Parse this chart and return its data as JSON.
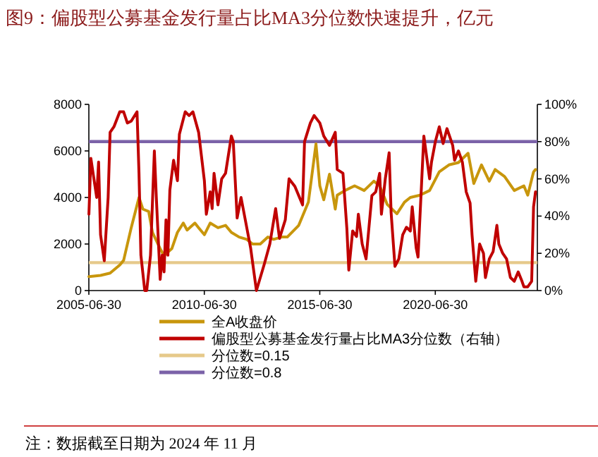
{
  "chart_data": {
    "type": "line",
    "title": "图9：偏股型公募基金发行量占比MA3分位数快速提升，亿元",
    "annotations": [
      "注：数据截至日期为 2024 年 11 月"
    ],
    "xlim": [
      "2005-06-30",
      "2024-11-30"
    ],
    "xticks": [
      "2005-06-30",
      "2010-06-30",
      "2015-06-30",
      "2020-06-30"
    ],
    "ylim": [
      0,
      8000
    ],
    "yticks": [
      0,
      2000,
      4000,
      6000,
      8000
    ],
    "y2lim": [
      0,
      1
    ],
    "y2ticks": [
      {
        "value": 0,
        "label": "0%"
      },
      {
        "value": 0.2,
        "label": "20%"
      },
      {
        "value": 0.4,
        "label": "40%"
      },
      {
        "value": 0.6,
        "label": "60%"
      },
      {
        "value": 0.8,
        "label": "80%"
      },
      {
        "value": 1,
        "label": "100%"
      }
    ],
    "grid": false,
    "legend": "bottom",
    "series": [
      {
        "name": "全A收盘价",
        "color": "#c8960c",
        "x": [
          "2005-07",
          "2006-01",
          "2006-06",
          "2006-11",
          "2007-01",
          "2007-05",
          "2007-09",
          "2007-11",
          "2008-02",
          "2008-04",
          "2008-08",
          "2008-10",
          "2009-02",
          "2009-05",
          "2009-08",
          "2009-10",
          "2010-02",
          "2010-04",
          "2010-07",
          "2010-10",
          "2011-02",
          "2011-06",
          "2011-09",
          "2012-01",
          "2012-05",
          "2012-08",
          "2012-12",
          "2013-04",
          "2013-07",
          "2013-11",
          "2014-02",
          "2014-08",
          "2015-01",
          "2015-05",
          "2015-07",
          "2015-09",
          "2015-12",
          "2016-03",
          "2016-04",
          "2016-08",
          "2017-01",
          "2017-06",
          "2017-11",
          "2018-02",
          "2018-06",
          "2018-11",
          "2019-03",
          "2019-06",
          "2019-11",
          "2020-04",
          "2020-09",
          "2021-02",
          "2021-07",
          "2021-12",
          "2022-03",
          "2022-07",
          "2022-11",
          "2023-02",
          "2023-07",
          "2023-12",
          "2024-05",
          "2024-07",
          "2024-10",
          "2024-11"
        ],
        "values": [
          600,
          650,
          750,
          1100,
          1300,
          2700,
          4000,
          3500,
          3400,
          2500,
          1800,
          1500,
          1800,
          2500,
          2900,
          2600,
          2900,
          2700,
          2400,
          2900,
          2700,
          2800,
          2500,
          2300,
          2200,
          2000,
          2000,
          2300,
          2200,
          2300,
          2300,
          2800,
          3800,
          6300,
          4500,
          3900,
          5000,
          3500,
          4100,
          4300,
          4500,
          4300,
          4700,
          4500,
          3700,
          3300,
          3800,
          4000,
          4100,
          4300,
          5100,
          5400,
          5500,
          5900,
          4600,
          5400,
          4700,
          5200,
          4900,
          4300,
          4500,
          4100,
          5100,
          5200
        ]
      },
      {
        "name": "偏股型公募基金发行量占比MA3分位数（右轴）",
        "color": "#c00000",
        "axis": "y2",
        "x": [
          "2005-07",
          "2005-08",
          "2005-11",
          "2005-12",
          "2006-01",
          "2006-03",
          "2006-05",
          "2006-06",
          "2006-08",
          "2006-11",
          "2007-01",
          "2007-03",
          "2007-05",
          "2007-08",
          "2007-09",
          "2007-10",
          "2007-12",
          "2008-01",
          "2008-03",
          "2008-05",
          "2008-06",
          "2008-08",
          "2008-09",
          "2008-10",
          "2008-11",
          "2008-12",
          "2009-01",
          "2009-03",
          "2009-05",
          "2009-06",
          "2009-09",
          "2009-11",
          "2010-01",
          "2010-04",
          "2010-07",
          "2010-08",
          "2010-10",
          "2010-11",
          "2010-12",
          "2011-02",
          "2011-04",
          "2011-06",
          "2011-09",
          "2011-10",
          "2011-12",
          "2012-02",
          "2012-07",
          "2012-10",
          "2013-02",
          "2013-05",
          "2013-08",
          "2013-10",
          "2014-01",
          "2014-03",
          "2014-06",
          "2014-10",
          "2014-11",
          "2015-02",
          "2015-04",
          "2015-07",
          "2015-09",
          "2015-12",
          "2016-03",
          "2016-04",
          "2016-07",
          "2016-09",
          "2016-10",
          "2016-12",
          "2017-02",
          "2017-03",
          "2017-05",
          "2017-07",
          "2017-10",
          "2017-12",
          "2018-02",
          "2018-03",
          "2018-05",
          "2018-07",
          "2018-08",
          "2018-10",
          "2018-12",
          "2019-02",
          "2019-04",
          "2019-06",
          "2019-07",
          "2019-09",
          "2019-10",
          "2020-01",
          "2020-04",
          "2020-05",
          "2020-07",
          "2020-09",
          "2020-11",
          "2021-01",
          "2021-04",
          "2021-05",
          "2021-07",
          "2021-09",
          "2021-11",
          "2022-01",
          "2022-02",
          "2022-04",
          "2022-06",
          "2022-08",
          "2022-09",
          "2022-11",
          "2023-01",
          "2023-03",
          "2023-04",
          "2023-06",
          "2023-08",
          "2023-10",
          "2023-12",
          "2024-02",
          "2024-04",
          "2024-05",
          "2024-07",
          "2024-09",
          "2024-10",
          "2024-11"
        ],
        "values": [
          0.41,
          0.71,
          0.5,
          0.69,
          0.3,
          0.16,
          0.5,
          0.85,
          0.88,
          0.96,
          0.96,
          0.9,
          0.91,
          0.96,
          0.63,
          0.19,
          0,
          0,
          0.19,
          0.75,
          0.5,
          0.06,
          0.19,
          0.1,
          0.38,
          0.19,
          0.54,
          0.7,
          0.59,
          0.84,
          0.96,
          0.94,
          0.96,
          0.85,
          0.59,
          0.41,
          0.53,
          0.44,
          0.63,
          0.46,
          0.6,
          0.63,
          0.83,
          0.8,
          0.39,
          0.5,
          0.23,
          0,
          0.14,
          0.25,
          0.44,
          0.28,
          0.38,
          0.6,
          0.56,
          0.46,
          0.8,
          0.9,
          0.94,
          0.9,
          0.83,
          0.78,
          0.85,
          0.65,
          0.63,
          0.33,
          0.11,
          0.32,
          0.29,
          0.41,
          0.25,
          0.17,
          0.51,
          0.53,
          0.63,
          0.41,
          0.6,
          0.74,
          0.42,
          0.13,
          0.17,
          0.3,
          0.34,
          0.32,
          0.45,
          0.23,
          0.18,
          0.83,
          0.6,
          0.69,
          0.8,
          0.88,
          0.79,
          0.87,
          0.78,
          0.7,
          0.75,
          0.69,
          0.53,
          0.47,
          0.3,
          0.05,
          0.25,
          0.2,
          0.07,
          0.17,
          0.21,
          0.35,
          0.25,
          0.2,
          0.17,
          0.07,
          0.05,
          0.1,
          0.05,
          0.02,
          0.02,
          0.05,
          0.45,
          0.53
        ]
      }
    ],
    "ref_lines": [
      {
        "axis": "y2",
        "value": 0.15,
        "label": "分位数=0.15",
        "color": "#e6c98a"
      },
      {
        "axis": "y2",
        "value": 0.8,
        "label": "分位数=0.8",
        "color": "#7b62a8"
      }
    ]
  }
}
